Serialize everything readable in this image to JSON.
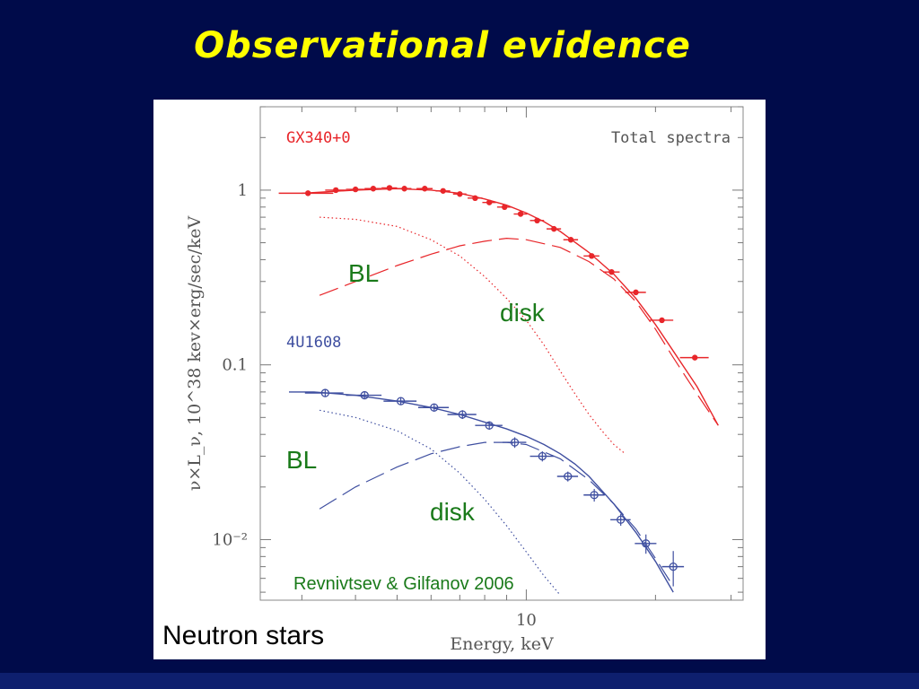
{
  "slide": {
    "title": "Observational evidence",
    "credit": "Revnivtsev & Gilfanov 2006",
    "neutron_label": "Neutron stars",
    "colors": {
      "background": "#000b4a",
      "title": "#ffff00",
      "annotation": "#1a7a1a"
    }
  },
  "chart_data": {
    "type": "line",
    "title": "Total spectra",
    "xlabel": "Energy, keV",
    "ylabel": "ν×L_ν, 10^38 kev×erg/sec/keV",
    "xscale": "log",
    "yscale": "log",
    "xlim": [
      2.4,
      32
    ],
    "ylim": [
      0.0045,
      3.0
    ],
    "x_ticks": [
      {
        "value": 10,
        "label": "10"
      }
    ],
    "y_ticks": [
      {
        "value": 1,
        "label": "1"
      },
      {
        "value": 0.1,
        "label": "0.1"
      },
      {
        "value": 0.01,
        "label": "10⁻²"
      }
    ],
    "grid": false,
    "annotations": [
      "BL",
      "disk",
      "BL",
      "disk"
    ],
    "series": [
      {
        "name": "GX340+0",
        "role": "total",
        "color": "#e8262a",
        "style": "solid",
        "x": [
          3.0,
          4.0,
          5.0,
          6.0,
          7.0,
          8.0,
          9.0,
          10.0,
          11.0,
          12.0,
          14.0,
          16.0,
          18.0,
          20.0,
          22.0,
          25.0,
          28.0
        ],
        "y": [
          0.96,
          1.0,
          1.02,
          1.0,
          0.96,
          0.89,
          0.82,
          0.74,
          0.66,
          0.58,
          0.44,
          0.33,
          0.24,
          0.17,
          0.12,
          0.075,
          0.045
        ]
      },
      {
        "name": "GX340+0",
        "role": "data",
        "color": "#e8262a",
        "markers": "filled-circle",
        "x": [
          3.1,
          3.6,
          4.0,
          4.4,
          4.8,
          5.2,
          5.8,
          6.4,
          7.0,
          7.6,
          8.2,
          8.9,
          9.7,
          10.6,
          11.6,
          12.7,
          14.2,
          15.8,
          18.0,
          20.7,
          24.7
        ],
        "y": [
          0.96,
          1.0,
          1.01,
          1.02,
          1.03,
          1.02,
          1.02,
          0.99,
          0.95,
          0.9,
          0.85,
          0.8,
          0.73,
          0.67,
          0.6,
          0.52,
          0.42,
          0.34,
          0.26,
          0.18,
          0.11
        ],
        "xerr": [
          0.45,
          0.2,
          0.2,
          0.2,
          0.2,
          0.2,
          0.25,
          0.25,
          0.25,
          0.3,
          0.3,
          0.35,
          0.35,
          0.4,
          0.45,
          0.5,
          0.6,
          0.7,
          1.0,
          1.3,
          1.9
        ]
      },
      {
        "name": "GX340+0",
        "role": "BL",
        "color": "#e8262a",
        "style": "dashed",
        "x": [
          3.3,
          4.0,
          5.0,
          6.0,
          7.0,
          8.0,
          9.0,
          10.0,
          12.0,
          14.0,
          16.0,
          18.0,
          20.0,
          22.0,
          25.0,
          28.0
        ],
        "y": [
          0.25,
          0.3,
          0.37,
          0.43,
          0.48,
          0.51,
          0.53,
          0.52,
          0.47,
          0.39,
          0.31,
          0.23,
          0.16,
          0.11,
          0.068,
          0.045
        ]
      },
      {
        "name": "GX340+0",
        "role": "disk",
        "color": "#e8262a",
        "style": "dotted",
        "x": [
          3.3,
          4.0,
          5.0,
          6.0,
          7.0,
          8.0,
          9.0,
          10.0,
          11.0,
          12.0,
          13.0,
          14.0,
          15.0,
          16.0,
          17.0
        ],
        "y": [
          0.7,
          0.68,
          0.62,
          0.52,
          0.42,
          0.32,
          0.24,
          0.18,
          0.13,
          0.092,
          0.068,
          0.052,
          0.042,
          0.035,
          0.031
        ]
      },
      {
        "name": "4U1608",
        "role": "total",
        "color": "#3f4fa0",
        "style": "solid",
        "x": [
          2.8,
          3.2,
          4.0,
          5.0,
          6.0,
          7.0,
          8.0,
          9.0,
          10.0,
          11.0,
          12.0,
          13.0,
          14.0,
          16.0,
          18.0,
          20.0,
          22.0
        ],
        "y": [
          0.07,
          0.07,
          0.067,
          0.062,
          0.057,
          0.052,
          0.047,
          0.043,
          0.039,
          0.035,
          0.031,
          0.027,
          0.023,
          0.016,
          0.011,
          0.0075,
          0.005
        ]
      },
      {
        "name": "4U1608",
        "role": "data",
        "color": "#3f4fa0",
        "markers": "open-circle",
        "x": [
          3.4,
          4.2,
          5.1,
          6.1,
          7.1,
          8.2,
          9.4,
          10.9,
          12.5,
          14.4,
          16.6,
          19.0,
          22.0
        ],
        "y": [
          0.069,
          0.067,
          0.062,
          0.057,
          0.052,
          0.045,
          0.036,
          0.03,
          0.023,
          0.018,
          0.013,
          0.0095,
          0.007
        ],
        "xerr": [
          0.35,
          0.4,
          0.45,
          0.5,
          0.55,
          0.6,
          0.6,
          0.7,
          0.7,
          0.8,
          0.9,
          1.1,
          1.3
        ],
        "yerr": [
          0.003,
          0.003,
          0.003,
          0.003,
          0.003,
          0.0025,
          0.0025,
          0.002,
          0.0015,
          0.0015,
          0.001,
          0.0012,
          0.0016
        ]
      },
      {
        "name": "4U1608",
        "role": "BL",
        "color": "#3f4fa0",
        "style": "dashed",
        "x": [
          3.3,
          4.0,
          5.0,
          6.0,
          7.0,
          8.0,
          9.0,
          10.0,
          12.0,
          14.0,
          16.0,
          18.0,
          20.0,
          22.0
        ],
        "y": [
          0.015,
          0.02,
          0.026,
          0.031,
          0.034,
          0.036,
          0.036,
          0.035,
          0.029,
          0.022,
          0.016,
          0.0115,
          0.0078,
          0.0054
        ]
      },
      {
        "name": "4U1608",
        "role": "disk",
        "color": "#3f4fa0",
        "style": "dotted",
        "x": [
          3.3,
          4.0,
          5.0,
          6.0,
          7.0,
          8.0,
          9.0,
          10.0,
          11.0,
          12.0
        ],
        "y": [
          0.055,
          0.05,
          0.042,
          0.033,
          0.024,
          0.017,
          0.012,
          0.0085,
          0.0062,
          0.0048
        ]
      }
    ],
    "series_labels": [
      {
        "text": "GX340+0",
        "color": "#e8262a"
      },
      {
        "text": "4U1608",
        "color": "#3f4fa0"
      }
    ]
  }
}
